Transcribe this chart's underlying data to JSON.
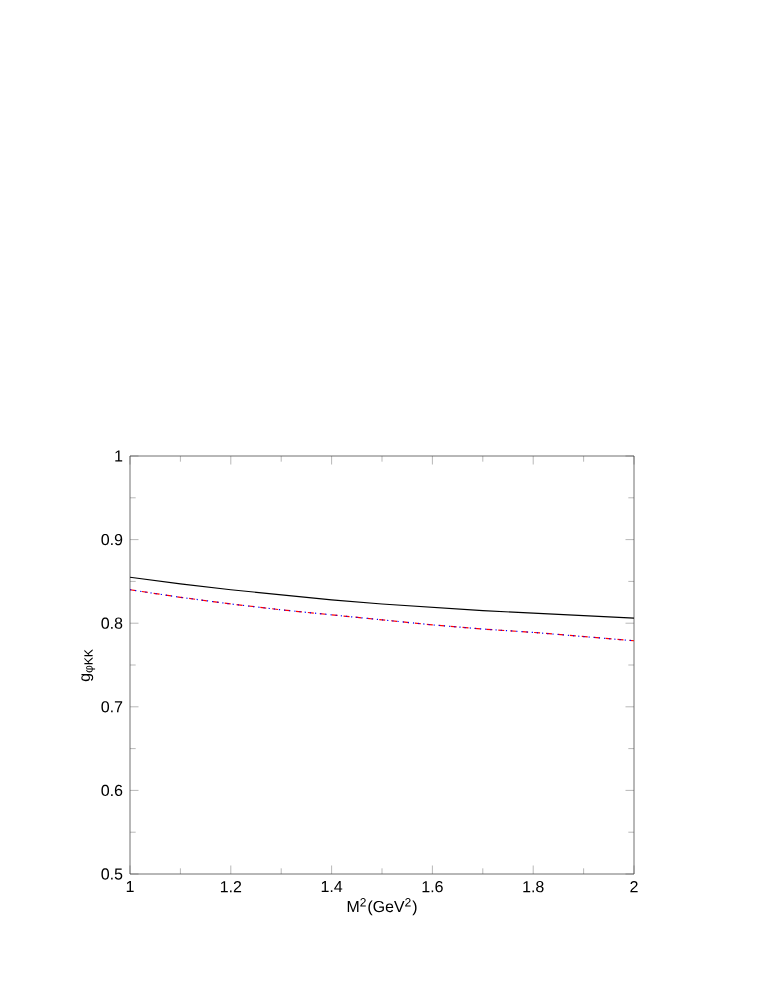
{
  "chart_data": {
    "type": "line",
    "xlabel": "M$^{2}$(GeV$^{2}$)",
    "ylabel": "g$_{φKK}$",
    "x": [
      1,
      1.1,
      1.2,
      1.3,
      1.4,
      1.5,
      1.6,
      1.7,
      1.8,
      1.9,
      2
    ],
    "xlim": [
      1,
      2
    ],
    "ylim": [
      0.5,
      1
    ],
    "xticks": [
      {
        "value": 1,
        "label": "1"
      },
      {
        "value": 1.2,
        "label": "1.2"
      },
      {
        "value": 1.4,
        "label": "1.4"
      },
      {
        "value": 1.6,
        "label": "1.6"
      },
      {
        "value": 1.8,
        "label": "1.8"
      },
      {
        "value": 2,
        "label": "2"
      }
    ],
    "yticks": [
      {
        "value": 0.5,
        "label": "0.5"
      },
      {
        "value": 0.6,
        "label": "0.6"
      },
      {
        "value": 0.7,
        "label": "0.7"
      },
      {
        "value": 0.8,
        "label": "0.8"
      },
      {
        "value": 0.9,
        "label": "0.9"
      },
      {
        "value": 1,
        "label": "1"
      }
    ],
    "series": [
      {
        "color": "#000000",
        "line_style": "solid",
        "values": [
          0.855,
          0.847,
          0.84,
          0.834,
          0.828,
          0.823,
          0.819,
          0.815,
          0.812,
          0.809,
          0.806
        ]
      },
      {
        "color": "#ff0000",
        "line_style": "dashed",
        "values": [
          0.84,
          0.831,
          0.823,
          0.816,
          0.81,
          0.804,
          0.798,
          0.793,
          0.789,
          0.784,
          0.779
        ]
      },
      {
        "color": "#0000ff",
        "line_style": "dotted",
        "values": [
          0.84,
          0.831,
          0.823,
          0.816,
          0.81,
          0.804,
          0.798,
          0.793,
          0.789,
          0.784,
          0.779
        ]
      }
    ]
  }
}
